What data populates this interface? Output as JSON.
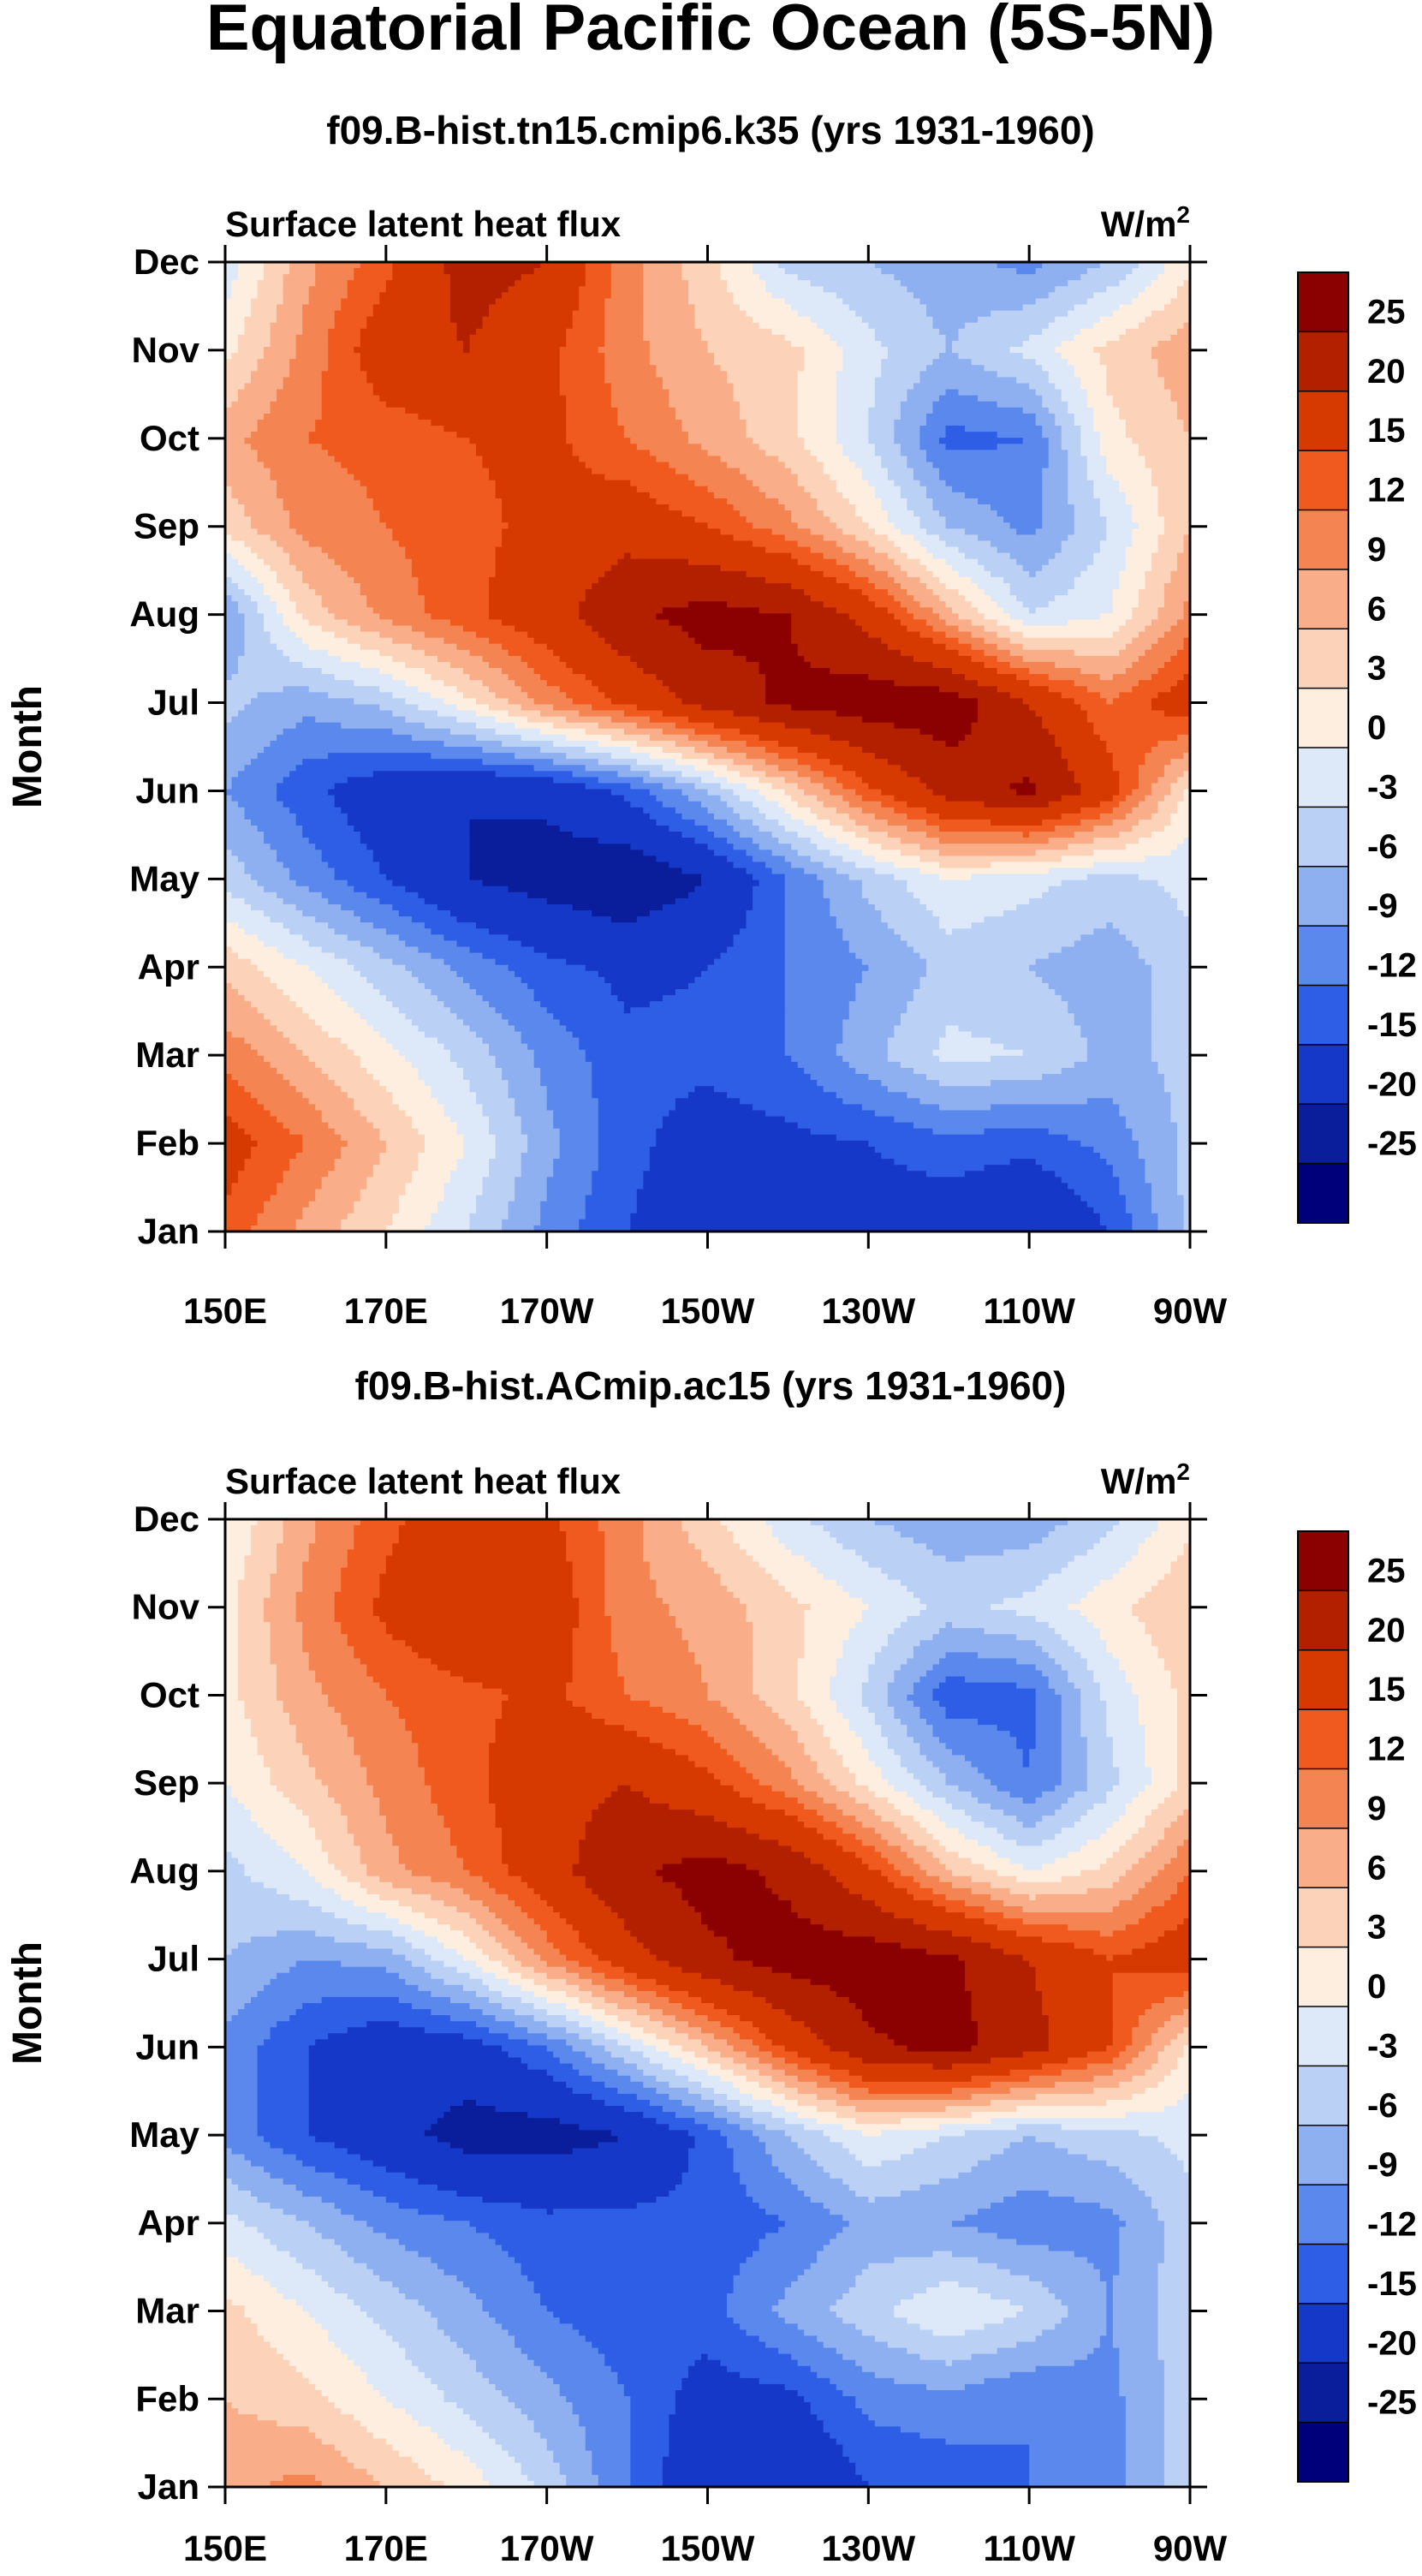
{
  "chart_data": {
    "type": "heatmap",
    "title": "Equatorial Pacific Ocean (5S-5N)",
    "panels": [
      {
        "subtitle": "f09.B-hist.tn15.cmip6.k35 (yrs 1931-1960)",
        "left_string": "Surface latent heat flux",
        "units": {
          "base": "W/m",
          "sup": "2"
        },
        "xlabel": "",
        "ylabel": "Month",
        "x_ticks": [
          "150E",
          "170E",
          "170W",
          "150W",
          "130W",
          "110W",
          "90W"
        ],
        "y_ticks": [
          "Jan",
          "Feb",
          "Mar",
          "Apr",
          "May",
          "Jun",
          "Jul",
          "Aug",
          "Sep",
          "Oct",
          "Nov",
          "Dec"
        ],
        "xlim_lon": [
          150,
          270
        ],
        "ylim_month": [
          0,
          11
        ],
        "grid_lon": [
          150,
          160,
          170,
          180,
          190,
          200,
          210,
          220,
          230,
          240,
          250,
          260,
          270
        ],
        "grid_values": [
          [
            14,
            8,
            3,
            -3,
            -10,
            -15,
            -18,
            -18,
            -17,
            -18,
            -20,
            -15,
            -5
          ],
          [
            17,
            12,
            6,
            0,
            -8,
            -14,
            -17,
            -16,
            -15,
            -13,
            -14,
            -11,
            -5
          ],
          [
            11,
            6,
            1,
            -4,
            -10,
            -14,
            -14,
            -12,
            -7,
            -2,
            -3,
            -7,
            -5
          ],
          [
            5,
            0,
            -5,
            -10,
            -14,
            -16,
            -15,
            -12,
            -9,
            -5,
            -6,
            -8,
            -4
          ],
          [
            -4,
            -10,
            -15,
            -20,
            -22,
            -24,
            -20,
            -12,
            -5,
            0,
            -2,
            -4,
            -2
          ],
          [
            -9,
            -14,
            -18,
            -20,
            -19,
            -14,
            -6,
            4,
            14,
            22,
            26,
            17,
            2
          ],
          [
            -5,
            -8,
            -5,
            2,
            10,
            16,
            22,
            26,
            28,
            28,
            20,
            12,
            18
          ],
          [
            -9,
            4,
            10,
            14,
            18,
            24,
            27,
            25,
            18,
            7,
            -3,
            0,
            10
          ],
          [
            4,
            10,
            12,
            14,
            16,
            18,
            15,
            10,
            3,
            -6,
            -10,
            -3,
            6
          ],
          [
            8,
            12,
            13,
            15,
            16,
            12,
            8,
            4,
            -3,
            -13,
            -12,
            2,
            6
          ],
          [
            2,
            10,
            18,
            20,
            16,
            10,
            6,
            4,
            -2,
            -6,
            -2,
            4,
            8
          ],
          [
            -2,
            8,
            14,
            22,
            20,
            10,
            4,
            -4,
            -6,
            -8,
            -10,
            -6,
            2
          ]
        ]
      },
      {
        "subtitle": "f09.B-hist.ACmip.ac15 (yrs 1931-1960)",
        "left_string": "Surface latent heat flux",
        "units": {
          "base": "W/m",
          "sup": "2"
        },
        "xlabel": "",
        "ylabel": "Month",
        "x_ticks": [
          "150E",
          "170E",
          "170W",
          "150W",
          "130W",
          "110W",
          "90W"
        ],
        "y_ticks": [
          "Jan",
          "Feb",
          "Mar",
          "Apr",
          "May",
          "Jun",
          "Jul",
          "Aug",
          "Sep",
          "Oct",
          "Nov",
          "Dec"
        ],
        "xlim_lon": [
          150,
          270
        ],
        "ylim_month": [
          0,
          11
        ],
        "grid_lon": [
          150,
          160,
          170,
          180,
          190,
          200,
          210,
          220,
          230,
          240,
          250,
          260,
          270
        ],
        "grid_values": [
          [
            8,
            10,
            6,
            2,
            -4,
            -12,
            -19,
            -20,
            -15,
            -14,
            -12,
            -10,
            -4
          ],
          [
            6,
            4,
            0,
            -4,
            -8,
            -12,
            -17,
            -16,
            -11,
            -10,
            -12,
            -10,
            -4
          ],
          [
            4,
            0,
            -4,
            -8,
            -12,
            -14,
            -13,
            -8,
            -4,
            0,
            -3,
            -9,
            -4
          ],
          [
            -2,
            -6,
            -10,
            -12,
            -14,
            -14,
            -14,
            -12,
            -8,
            -9,
            -11,
            -10,
            -4
          ],
          [
            -10,
            -15,
            -18,
            -22,
            -22,
            -20,
            -14,
            -6,
            0,
            -3,
            -6,
            -4,
            -2
          ],
          [
            -10,
            -15,
            -18,
            -17,
            -12,
            -3,
            6,
            16,
            24,
            27,
            22,
            15,
            2
          ],
          [
            -6,
            -9,
            -8,
            0,
            10,
            18,
            24,
            27,
            28,
            26,
            20,
            15,
            18
          ],
          [
            -4,
            0,
            8,
            12,
            18,
            24,
            27,
            24,
            16,
            6,
            0,
            4,
            12
          ],
          [
            0,
            5,
            10,
            14,
            18,
            20,
            16,
            10,
            2,
            -6,
            -12,
            -4,
            4
          ],
          [
            2,
            8,
            12,
            14,
            16,
            12,
            9,
            4,
            -4,
            -14,
            -13,
            -2,
            4
          ],
          [
            2,
            10,
            16,
            20,
            18,
            10,
            8,
            4,
            0,
            -4,
            -2,
            2,
            6
          ],
          [
            0,
            8,
            14,
            18,
            16,
            10,
            4,
            -2,
            -6,
            -8,
            -8,
            -4,
            2
          ]
        ]
      }
    ],
    "colorbar": {
      "levels": [
        "25",
        "20",
        "15",
        "12",
        "9",
        "6",
        "3",
        "0",
        "-3",
        "-6",
        "-9",
        "-12",
        "-15",
        "-20",
        "-25"
      ],
      "colors": [
        "#8b0000",
        "#b22000",
        "#d63a00",
        "#f05a1e",
        "#f58453",
        "#f9ad88",
        "#fcd2b8",
        "#fdeee0",
        "#dde9f8",
        "#bad0f4",
        "#8fb0f0",
        "#5a88ec",
        "#2e5ee6",
        "#1538c8",
        "#0a1e9c",
        "#00007a"
      ]
    }
  }
}
